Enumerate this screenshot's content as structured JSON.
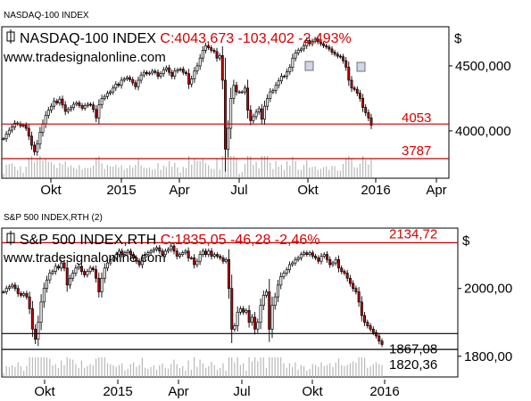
{
  "chart_data": [
    {
      "type": "candlestick",
      "panel_title": "NASDAQ-100 INDEX",
      "legend_name": "NASDAQ-100 INDEX",
      "legend_values": "C:4043,673 -103,402 -2,493%",
      "watermark": "www.tradesignalonline.com",
      "currency_symbol": "$",
      "y_ticks": [
        "4500,000",
        "4000,000"
      ],
      "y_tick_values": [
        4500,
        4000
      ],
      "x_ticks": [
        "Okt",
        "2015",
        "Apr",
        "Jul",
        "Okt",
        "2016",
        "Apr"
      ],
      "ylim": [
        3650,
        4760
      ],
      "levels": [
        {
          "label": "4053",
          "value": 4053
        },
        {
          "label": "3787",
          "value": 3787
        }
      ],
      "close_series": [
        3940,
        3975,
        4005,
        4030,
        4060,
        4055,
        4040,
        4045,
        4020,
        3960,
        3890,
        3840,
        3900,
        3990,
        4055,
        4120,
        4160,
        4190,
        4230,
        4215,
        4245,
        4200,
        4150,
        4165,
        4180,
        4205,
        4215,
        4195,
        4175,
        4195,
        4205,
        4200,
        4165,
        4100,
        4200,
        4250,
        4265,
        4290,
        4300,
        4330,
        4360,
        4350,
        4390,
        4400,
        4410,
        4395,
        4370,
        4340,
        4390,
        4430,
        4450,
        4440,
        4445,
        4460,
        4450,
        4420,
        4440,
        4470,
        4485,
        4450,
        4420,
        4460,
        4470,
        4475,
        4450,
        4440,
        4360,
        4400,
        4460,
        4500,
        4560,
        4620,
        4655,
        4640,
        4620,
        4610,
        4560,
        4580,
        4390,
        3860,
        4020,
        4250,
        4350,
        4300,
        4300,
        4300,
        4330,
        4160,
        4080,
        4110,
        4145,
        4170,
        4090,
        4190,
        4250,
        4300,
        4310,
        4350,
        4385,
        4420,
        4420,
        4455,
        4490,
        4560,
        4600,
        4620,
        4630,
        4655,
        4695,
        4670,
        4690,
        4705,
        4685,
        4670,
        4655,
        4645,
        4630,
        4605,
        4590,
        4575,
        4570,
        4540,
        4490,
        4390,
        4330,
        4320,
        4290,
        4250,
        4180,
        4140,
        4100,
        4044
      ]
    },
    {
      "type": "candlestick",
      "panel_title": "S&P 500 INDEX,RTH (2)",
      "legend_name": "S&P 500 INDEX,RTH",
      "legend_values": "C:1835,05 -46,28 -2,46%",
      "watermark": "www.tradesignalonline.com",
      "currency_symbol": "$",
      "y_ticks": [
        "2000,00",
        "1800,00"
      ],
      "y_tick_values": [
        2000,
        1800
      ],
      "x_ticks": [
        "Okt",
        "2015",
        "Apr",
        "Jul",
        "Okt",
        "2016"
      ],
      "ylim": [
        1747,
        2162
      ],
      "levels": [
        {
          "label": "2134,72",
          "value": 2134.72
        },
        {
          "label": "1867,08",
          "value": 1867.08
        },
        {
          "label": "1820,36",
          "value": 1820.36
        }
      ],
      "close_series": [
        1990,
        2000,
        2005,
        2010,
        2000,
        1985,
        1980,
        1985,
        1975,
        1940,
        1880,
        1850,
        1900,
        1960,
        2000,
        2025,
        2045,
        2050,
        2065,
        2060,
        2075,
        2060,
        2010,
        2030,
        2045,
        2060,
        2065,
        2050,
        2040,
        2050,
        2060,
        2055,
        2030,
        1990,
        2030,
        2060,
        2075,
        2085,
        2090,
        2100,
        2110,
        2100,
        2105,
        2110,
        2100,
        2090,
        2080,
        2070,
        2090,
        2100,
        2105,
        2110,
        2115,
        2120,
        2110,
        2100,
        2110,
        2115,
        2125,
        2110,
        2095,
        2100,
        2105,
        2110,
        2090,
        2090,
        2070,
        2080,
        2100,
        2110,
        2100,
        2110,
        2095,
        2100,
        2095,
        2090,
        2080,
        2085,
        2000,
        1880,
        1890,
        1930,
        1940,
        1930,
        1935,
        1900,
        1915,
        1880,
        1900,
        1950,
        1980,
        1990,
        1880,
        1950,
        1975,
        2010,
        2035,
        2045,
        2055,
        2070,
        2075,
        2085,
        2090,
        2100,
        2105,
        2100,
        2105,
        2095,
        2090,
        2080,
        2095,
        2100,
        2085,
        2070,
        2075,
        2085,
        2060,
        2050,
        2045,
        2030,
        2015,
        2000,
        1990,
        1960,
        1920,
        1900,
        1890,
        1880,
        1870,
        1860,
        1845,
        1835
      ]
    }
  ]
}
